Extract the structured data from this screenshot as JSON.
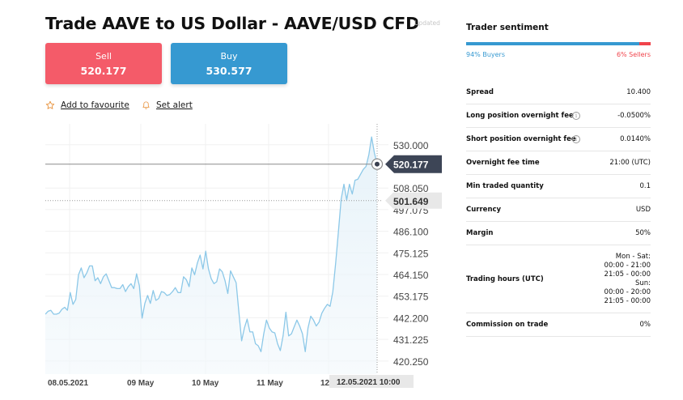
{
  "header": {
    "title": "Trade AAVE to US Dollar - AAVE/USD CFD",
    "updated": "Updated"
  },
  "buttons": {
    "sell_label": "Sell",
    "sell_price": "520.177",
    "buy_label": "Buy",
    "buy_price": "530.577"
  },
  "actions": {
    "favourite": "Add to favourite",
    "alert": "Set alert"
  },
  "colors": {
    "sell": "#f45b69",
    "buy": "#3699d1",
    "sellers": "#f0434b",
    "line": "#8cc8e8"
  },
  "chart_data": {
    "type": "area",
    "y_ticks": [
      "530.000",
      "508.050",
      "497.075",
      "486.100",
      "475.125",
      "464.150",
      "453.175",
      "442.200",
      "431.225",
      "420.250"
    ],
    "x_ticks": [
      "08.05.2021",
      "09 May",
      "10 May",
      "11 May",
      "12"
    ],
    "ylim": [
      413.6,
      540.6
    ],
    "current_price_label": "520.177",
    "current_price": 520.177,
    "hover_price_label": "501.649",
    "hover_price": 501.649,
    "crosshair_date": "12.05.2021 10:00",
    "series": [
      {
        "values": [
          444.0,
          445.5,
          446.0,
          444.0,
          444.0,
          444.5,
          446.5,
          447.5,
          446.0,
          455.0,
          449.0,
          451.5,
          464.0,
          467.5,
          462.5,
          465.0,
          468.5,
          468.5,
          461.0,
          462.5,
          459.5,
          463.0,
          464.5,
          461.0,
          457.5,
          457.5,
          457.0,
          457.0,
          459.0,
          455.5,
          458.0,
          459.5,
          457.0,
          464.5,
          458.5,
          442.0,
          449.5,
          453.5,
          449.5,
          456.0,
          451.0,
          452.0,
          455.5,
          455.0,
          453.5,
          454.0,
          455.5,
          457.5,
          455.0,
          455.0,
          463.0,
          461.5,
          458.0,
          467.5,
          464.0,
          470.0,
          474.0,
          467.0,
          476.0,
          467.0,
          462.0,
          459.5,
          460.5,
          467.0,
          465.5,
          461.0,
          454.5,
          466.0,
          463.0,
          460.0,
          445.0,
          430.5,
          437.0,
          441.5,
          435.0,
          435.0,
          429.0,
          428.0,
          425.0,
          434.0,
          441.0,
          437.0,
          435.0,
          434.5,
          429.0,
          425.5,
          433.0,
          445.0,
          433.0,
          434.0,
          437.5,
          441.0,
          438.0,
          434.0,
          425.0,
          437.0,
          443.0,
          441.0,
          438.0,
          440.0,
          444.5,
          447.0,
          449.0,
          448.0,
          455.5,
          470.0,
          486.0,
          502.5,
          510.0,
          502.0,
          510.0,
          505.0,
          512.0,
          512.5,
          515.0,
          517.5,
          519.0,
          525.0,
          534.0,
          526.0,
          520.2
        ]
      }
    ],
    "grid": true
  },
  "sentiment": {
    "title": "Trader sentiment",
    "buyers_pct": 94,
    "buyers_label": "94% Buyers",
    "sellers_label": "6% Sellers"
  },
  "info": [
    {
      "key": "Spread",
      "value": "10.400"
    },
    {
      "key": "Long position overnight fee",
      "value": "-0.0500%",
      "info_icon": true
    },
    {
      "key": "Short position overnight fee",
      "value": "0.0140%",
      "info_icon": true
    },
    {
      "key": "Overnight fee time",
      "value": "21:00 (UTC)"
    },
    {
      "key": "Min traded quantity",
      "value": "0.1"
    },
    {
      "key": "Currency",
      "value": "USD"
    },
    {
      "key": "Margin",
      "value": "50%"
    },
    {
      "key": "Trading hours (UTC)",
      "value_lines": [
        "Mon - Sat:",
        "00:00 - 21:00",
        "21:05 - 00:00",
        "Sun:",
        "00:00 - 20:00",
        "21:05 - 00:00"
      ]
    },
    {
      "key": "Commission on trade",
      "value": "0%"
    }
  ]
}
